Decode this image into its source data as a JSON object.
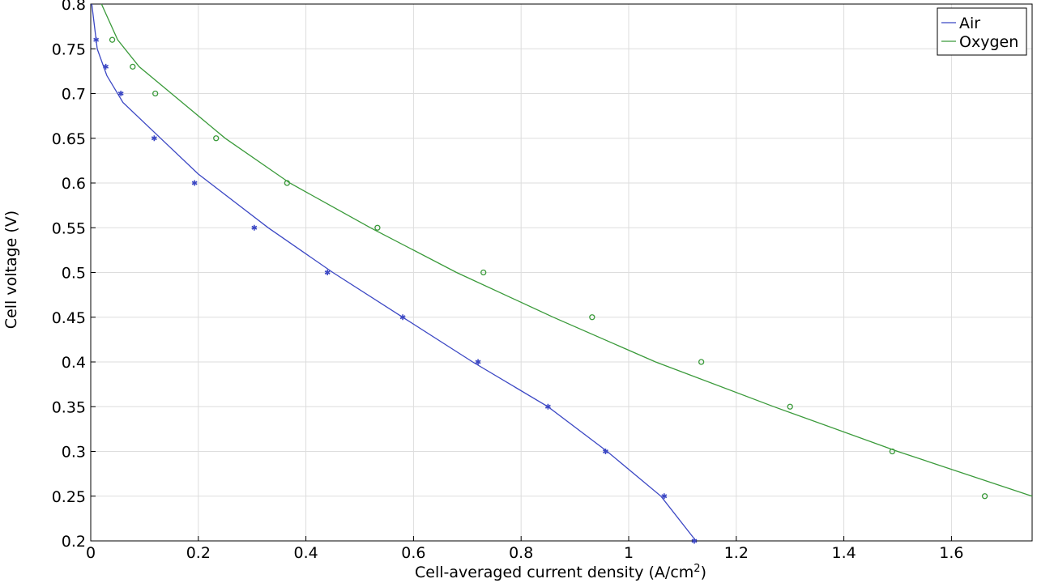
{
  "chart_data": {
    "type": "line",
    "xlabel": "Cell-averaged current density (A/cm",
    "xlabel_sup": "2",
    "xlabel_end": ")",
    "ylabel": "Cell voltage (V)",
    "xlim": [
      0,
      1.75
    ],
    "ylim": [
      0.2,
      0.8
    ],
    "x_ticks": [
      0,
      0.2,
      0.4,
      0.6,
      0.8,
      1,
      1.2,
      1.4,
      1.6
    ],
    "x_tick_labels": [
      "0",
      "0.2",
      "0.4",
      "0.6",
      "0.8",
      "1",
      "1.2",
      "1.4",
      "1.6"
    ],
    "y_ticks": [
      0.2,
      0.25,
      0.3,
      0.35,
      0.4,
      0.45,
      0.5,
      0.55,
      0.6,
      0.65,
      0.7,
      0.75,
      0.8
    ],
    "y_tick_labels": [
      "0.2",
      "0.25",
      "0.3",
      "0.35",
      "0.4",
      "0.45",
      "0.5",
      "0.55",
      "0.6",
      "0.65",
      "0.7",
      "0.75",
      "0.8"
    ],
    "grid": true,
    "legend_position": "top-right",
    "series": [
      {
        "name": "Air",
        "color": "#3b47c4",
        "marker": "asterisk",
        "line": {
          "x": [
            0.002,
            0.012,
            0.03,
            0.06,
            0.13,
            0.2,
            0.33,
            0.45,
            0.58,
            0.71,
            0.85,
            0.96,
            1.06,
            1.125
          ],
          "y": [
            0.8,
            0.75,
            0.72,
            0.69,
            0.65,
            0.61,
            0.55,
            0.5,
            0.45,
            0.4,
            0.35,
            0.3,
            0.25,
            0.2
          ]
        },
        "points": {
          "x": [
            0.01,
            0.028,
            0.056,
            0.118,
            0.193,
            0.304,
            0.44,
            0.58,
            0.72,
            0.85,
            0.957,
            1.066,
            1.122
          ],
          "y": [
            0.76,
            0.73,
            0.7,
            0.65,
            0.6,
            0.55,
            0.5,
            0.45,
            0.4,
            0.35,
            0.3,
            0.25,
            0.2
          ]
        }
      },
      {
        "name": "Oxygen",
        "color": "#3a9a3a",
        "marker": "circle",
        "line": {
          "x": [
            0.02,
            0.05,
            0.09,
            0.15,
            0.25,
            0.37,
            0.52,
            0.68,
            0.86,
            1.05,
            1.27,
            1.5,
            1.75
          ],
          "y": [
            0.8,
            0.76,
            0.73,
            0.7,
            0.65,
            0.6,
            0.55,
            0.5,
            0.45,
            0.4,
            0.35,
            0.3,
            0.25
          ]
        },
        "points": {
          "x": [
            0.04,
            0.078,
            0.12,
            0.233,
            0.365,
            0.533,
            0.73,
            0.932,
            1.135,
            1.3,
            1.49,
            1.662
          ],
          "y": [
            0.76,
            0.73,
            0.7,
            0.65,
            0.6,
            0.55,
            0.5,
            0.45,
            0.4,
            0.35,
            0.3,
            0.25
          ]
        }
      }
    ]
  }
}
